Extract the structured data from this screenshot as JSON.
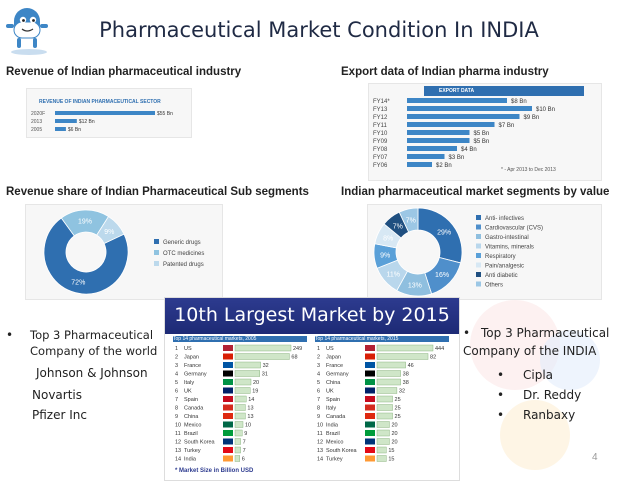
{
  "title": "Pharmaceutical Market Condition In INDIA",
  "page_number": "4",
  "sections": {
    "revenue": "Revenue of Indian pharmaceutical industry",
    "export": "Export data of Indian pharma industry",
    "revenue_share": "Revenue share of Indian Pharmaceutical Sub segments",
    "segments": "Indian pharmaceutical market segments by value"
  },
  "revenue_chart": {
    "header": "REVENUE OF INDIAN PHARMACEUTICAL SECTOR",
    "rows": [
      {
        "label": "2020F",
        "value": "$55 Bn",
        "amount": 55
      },
      {
        "label": "2013",
        "value": "$12 Bn",
        "amount": 12
      },
      {
        "label": "2005",
        "value": "$6 Bn",
        "amount": 6
      }
    ]
  },
  "export_chart": {
    "header": "EXPORT DATA",
    "note": "* - Apr 2013 to Dec 2013",
    "rows": [
      {
        "label": "FY14*",
        "value": "$8 Bn",
        "amount": 8
      },
      {
        "label": "FY13",
        "value": "$10 Bn",
        "amount": 10
      },
      {
        "label": "FY12",
        "value": "$9 Bn",
        "amount": 9
      },
      {
        "label": "FY11",
        "value": "$7 Bn",
        "amount": 7
      },
      {
        "label": "FY10",
        "value": "$5 Bn",
        "amount": 5
      },
      {
        "label": "FY09",
        "value": "$5 Bn",
        "amount": 5
      },
      {
        "label": "FY08",
        "value": "$4 Bn",
        "amount": 4
      },
      {
        "label": "FY07",
        "value": "$3 Bn",
        "amount": 3
      },
      {
        "label": "FY06",
        "value": "$2 Bn",
        "amount": 2
      }
    ]
  },
  "share_donut": {
    "labels": [
      "72%",
      "19%",
      "9%"
    ],
    "values": [
      72,
      19,
      9
    ],
    "colors": [
      "#2f6fb0",
      "#8fc3e0",
      "#bcd9ec"
    ],
    "legend": [
      "Generic drugs",
      "OTC medicines",
      "Patented drugs"
    ]
  },
  "segments_donut": {
    "labels": [
      "29%",
      "16%",
      "13%",
      "11%",
      "9%",
      "8%",
      "7%",
      "7%"
    ],
    "values": [
      29,
      16,
      13,
      11,
      9,
      8,
      7,
      7
    ],
    "colors": [
      "#2f6fb0",
      "#4f8fcb",
      "#8fbfdf",
      "#b9d7ec",
      "#5aa0d8",
      "#d7e8f4",
      "#1f4f80",
      "#9cc7e5"
    ],
    "legend": [
      "Anti- infectives",
      "Cardiovascular (CVS)",
      "Gastro-intestinal",
      "Vitamins, minerals",
      "Respiratory",
      "Pain/analgesic",
      "Anti diabetic",
      "Others"
    ]
  },
  "largest_market": {
    "title": "10th Largest Market by 2015",
    "table2005_header": "Top 14 pharmaceutical markets, 2005",
    "table2015_header": "Top 14 pharmaceutical markets, 2015",
    "footnote": "* Market Size in Billion USD",
    "rows2005": [
      {
        "rank": "1",
        "country": "US",
        "value": "249"
      },
      {
        "rank": "2",
        "country": "Japan",
        "value": "68"
      },
      {
        "rank": "3",
        "country": "France",
        "value": "32"
      },
      {
        "rank": "4",
        "country": "Germany",
        "value": "31"
      },
      {
        "rank": "5",
        "country": "Italy",
        "value": "20"
      },
      {
        "rank": "6",
        "country": "UK",
        "value": "19"
      },
      {
        "rank": "7",
        "country": "Spain",
        "value": "14"
      },
      {
        "rank": "8",
        "country": "Canada",
        "value": "13"
      },
      {
        "rank": "9",
        "country": "China",
        "value": "13"
      },
      {
        "rank": "10",
        "country": "Mexico",
        "value": "10"
      },
      {
        "rank": "11",
        "country": "Brazil",
        "value": "9"
      },
      {
        "rank": "12",
        "country": "South Korea",
        "value": "7"
      },
      {
        "rank": "13",
        "country": "Turkey",
        "value": "7"
      },
      {
        "rank": "14",
        "country": "India",
        "value": "6"
      }
    ],
    "rows2015": [
      {
        "rank": "1",
        "country": "US",
        "value": "444"
      },
      {
        "rank": "2",
        "country": "Japan",
        "value": "82"
      },
      {
        "rank": "3",
        "country": "France",
        "value": "46"
      },
      {
        "rank": "4",
        "country": "Germany",
        "value": "38"
      },
      {
        "rank": "5",
        "country": "China",
        "value": "38"
      },
      {
        "rank": "6",
        "country": "UK",
        "value": "32"
      },
      {
        "rank": "7",
        "country": "Spain",
        "value": "25"
      },
      {
        "rank": "8",
        "country": "Italy",
        "value": "25"
      },
      {
        "rank": "9",
        "country": "Canada",
        "value": "25"
      },
      {
        "rank": "10",
        "country": "India",
        "value": "20"
      },
      {
        "rank": "11",
        "country": "Brazil",
        "value": "20"
      },
      {
        "rank": "12",
        "country": "Mexico",
        "value": "20"
      },
      {
        "rank": "13",
        "country": "South Korea",
        "value": "15"
      },
      {
        "rank": "14",
        "country": "Turkey",
        "value": "15"
      }
    ]
  },
  "world_companies": {
    "bullet": "•",
    "heading_line1": "Top 3 Pharmaceutical",
    "heading_line2": "Company of the world",
    "items": [
      "Johnson & Johnson",
      "Novartis",
      "Pfizer Inc"
    ]
  },
  "india_companies": {
    "bullet": "•",
    "heading_line1": "Top 3 Pharmaceutical",
    "heading_line2": "Company of the INDIA",
    "items": [
      "Cipla",
      "Dr. Reddy",
      "Ranbaxy"
    ]
  }
}
